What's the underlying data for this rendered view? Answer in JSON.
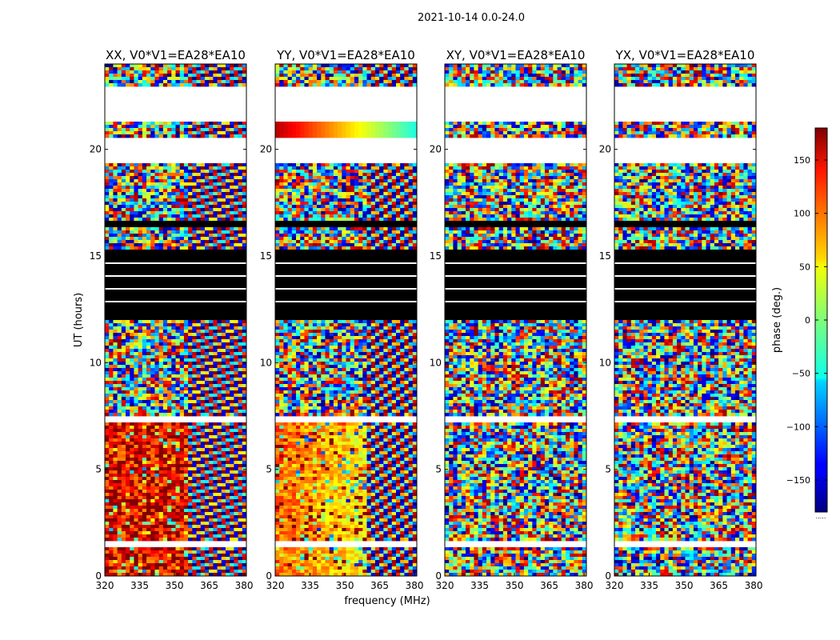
{
  "figure": {
    "suptitle": "2021-10-14 0.0-24.0"
  },
  "chart_data": {
    "type": "heatmap",
    "xlabel": "frequency (MHz)",
    "ylabel": "UT (hours)",
    "xlim": [
      320,
      381
    ],
    "ylim": [
      0,
      24
    ],
    "xticks": [
      320,
      335,
      350,
      365,
      380
    ],
    "yticks": [
      0,
      5,
      10,
      15,
      20
    ],
    "panels": [
      {
        "title": "XX, V0*V1=EA28*EA10",
        "pattern": "xx"
      },
      {
        "title": "YY, V0*V1=EA28*EA10",
        "pattern": "yy"
      },
      {
        "title": "XY, V0*V1=EA28*EA10",
        "pattern": "cross"
      },
      {
        "title": "YX, V0*V1=EA28*EA10",
        "pattern": "cross"
      }
    ],
    "colorbar": {
      "label": "phase (deg.)",
      "range": [
        -180,
        180
      ],
      "ticks": [
        -150,
        -100,
        -50,
        0,
        50,
        100,
        150
      ],
      "colormap": "jet",
      "under_label": "....."
    },
    "blank_intervals_hours": [
      [
        21.3,
        22.9
      ],
      [
        19.3,
        20.6
      ],
      [
        7.2,
        7.5
      ],
      [
        1.4,
        1.6
      ]
    ],
    "flagged_intervals_hours": [
      [
        12.0,
        15.3
      ],
      [
        16.3,
        16.6
      ]
    ]
  }
}
